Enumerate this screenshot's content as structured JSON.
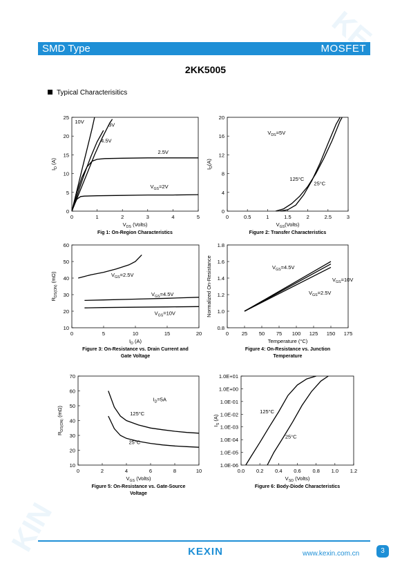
{
  "header": {
    "left": "SMD Type",
    "right": "MOSFET"
  },
  "page_title": "2KK5005",
  "section_title": "Typical  Characterisitics",
  "footer": {
    "logo": "KEXIN",
    "website": "www.kexin.com.cn",
    "page": "3"
  },
  "colors": {
    "brand": "#1e8fd6"
  },
  "chart_data": [
    {
      "type": "line",
      "caption": "Fig 1: On-Region Characteristics",
      "xlabel": "V_DS (Volts)",
      "ylabel": "I_D (A)",
      "xlim": [
        0,
        5
      ],
      "ylim": [
        0,
        25
      ],
      "xticks": [
        0,
        1,
        2,
        3,
        4,
        5
      ],
      "yticks": [
        0,
        5,
        10,
        15,
        20,
        25
      ],
      "series": [
        {
          "name": "10V",
          "x": [
            0,
            0.2,
            0.4,
            0.6,
            0.8,
            0.9
          ],
          "y": [
            0,
            5.5,
            11,
            16.5,
            22,
            25
          ]
        },
        {
          "name": "3V",
          "x": [
            0,
            0.3,
            0.6,
            0.9,
            1.2,
            1.5,
            1.6
          ],
          "y": [
            0,
            5,
            10,
            15,
            19.5,
            23.5,
            24.5
          ]
        },
        {
          "name": "4.5V",
          "x": [
            0,
            0.25,
            0.5,
            0.75,
            1.0,
            1.25
          ],
          "y": [
            0,
            5,
            10,
            14.5,
            18.5,
            21.5
          ]
        },
        {
          "name": "2.5V",
          "x": [
            0,
            0.2,
            0.4,
            0.6,
            0.8,
            1.0,
            1.3,
            2,
            3,
            4,
            5
          ],
          "y": [
            0,
            5,
            9,
            11.8,
            13.3,
            13.8,
            14,
            14.1,
            14.2,
            14.2,
            14.2
          ]
        },
        {
          "name": "VGS=2V",
          "x": [
            0,
            0.1,
            0.2,
            0.35,
            0.5,
            1,
            2,
            3,
            4,
            5
          ],
          "y": [
            0,
            1.8,
            3.2,
            3.9,
            4.0,
            4.1,
            4.2,
            4.3,
            4.3,
            4.4
          ]
        }
      ],
      "labels": [
        {
          "text": "10V",
          "x": 0.12,
          "y": 23.3
        },
        {
          "text": "3V",
          "x": 1.45,
          "y": 22.5
        },
        {
          "text": "4.5V",
          "x": 1.15,
          "y": 18.3
        },
        {
          "text": "2.5V",
          "x": 3.4,
          "y": 15.3
        }
      ],
      "vgs_label": {
        "sub": "GS",
        "value": "=2V",
        "x": 3.1,
        "y": 6.1
      }
    },
    {
      "type": "line",
      "caption": "Figure 2: Transfer Characteristics",
      "xlabel": "V_GS (Volts)",
      "ylabel": "I_D (A)",
      "xlim": [
        0,
        3
      ],
      "ylim": [
        0,
        20
      ],
      "xticks": [
        0,
        0.5,
        1,
        1.5,
        2,
        2.5,
        3
      ],
      "yticks": [
        0,
        4,
        8,
        12,
        16,
        20
      ],
      "series": [
        {
          "name": "125°C",
          "x": [
            1.2,
            1.4,
            1.6,
            1.8,
            2.0,
            2.2,
            2.4,
            2.6,
            2.8,
            2.85
          ],
          "y": [
            0,
            0.5,
            1.6,
            3.2,
            5.3,
            8,
            11.3,
            15,
            19.2,
            20
          ]
        },
        {
          "name": "25°C",
          "x": [
            1.3,
            1.5,
            1.7,
            1.9,
            2.1,
            2.3,
            2.5,
            2.7,
            2.8
          ],
          "y": [
            0,
            0.3,
            1.3,
            3.5,
            6.5,
            10.2,
            14.4,
            18.5,
            20
          ]
        }
      ],
      "labels": [
        {
          "text": "125°C",
          "x": 1.55,
          "y": 6.5
        },
        {
          "text": "25°C",
          "x": 2.15,
          "y": 5.5
        }
      ],
      "vds_label": {
        "sub": "DS",
        "value": "=5V",
        "x": 1.0,
        "y": 16.3
      }
    },
    {
      "type": "line",
      "caption": "Figure 3: On-Resistance vs. Drain Current and Gate Voltage",
      "xlabel": "I_D (A)",
      "ylabel": "R_DS(ON) (mΩ)",
      "xlim": [
        0,
        20
      ],
      "ylim": [
        10,
        60
      ],
      "xticks": [
        0,
        5,
        10,
        15,
        20
      ],
      "yticks": [
        10,
        20,
        30,
        40,
        50,
        60
      ],
      "series": [
        {
          "name": "VGS=2.5V",
          "x": [
            1,
            2,
            3,
            5,
            7,
            9,
            10,
            11
          ],
          "y": [
            40,
            41,
            42,
            43.5,
            45.5,
            48,
            50,
            54
          ]
        },
        {
          "name": "VGS=4.5V",
          "x": [
            2,
            5,
            10,
            15,
            20
          ],
          "y": [
            26.5,
            26.8,
            27.3,
            27.8,
            28.4
          ]
        },
        {
          "name": "VGS=10V",
          "x": [
            2,
            5,
            10,
            15,
            20
          ],
          "y": [
            22.0,
            22.2,
            22.4,
            22.6,
            22.8
          ]
        }
      ],
      "vgs_labels": [
        {
          "sub": "GS",
          "value": "=2.5V",
          "x": 6.2,
          "y": 40.8
        },
        {
          "sub": "GS",
          "value": "=4.5V",
          "x": 12.5,
          "y": 29.2
        },
        {
          "sub": "GS",
          "value": "=10V",
          "x": 13,
          "y": 17.8
        }
      ]
    },
    {
      "type": "line",
      "caption": "Figure 4: On-Resistance vs. Junction Temperature",
      "xlabel": "Temperature (°C)",
      "ylabel": "Normalized On-Resistance",
      "xlim": [
        0,
        175
      ],
      "ylim": [
        0.8,
        1.8
      ],
      "xticks": [
        0,
        25,
        50,
        75,
        100,
        125,
        150,
        175
      ],
      "yticks": [
        0.8,
        1,
        1.2,
        1.4,
        1.6,
        1.8
      ],
      "series": [
        {
          "name": "VGS=4.5V",
          "x": [
            25,
            150
          ],
          "y": [
            1.0,
            1.6
          ]
        },
        {
          "name": "VGS=10V",
          "x": [
            25,
            150
          ],
          "y": [
            1.0,
            1.57
          ]
        },
        {
          "name": "VGS=2.5V",
          "x": [
            25,
            150
          ],
          "y": [
            1.0,
            1.53
          ]
        }
      ],
      "vgs_labels": [
        {
          "sub": "GS",
          "value": "=4.5V",
          "x": 65,
          "y": 1.51
        },
        {
          "sub": "GS",
          "value": "=10V",
          "x": 152,
          "y": 1.36
        },
        {
          "sub": "GS",
          "value": "=2.5V",
          "x": 118,
          "y": 1.2
        }
      ]
    },
    {
      "type": "line",
      "caption": "Figure 5: On-Resistance vs. Gate-Source Voltage",
      "xlabel": "V_GS (Volts)",
      "ylabel": "R_DS(ON) (mΩ)",
      "xlim": [
        0,
        10
      ],
      "ylim": [
        10,
        70
      ],
      "xticks": [
        0,
        2,
        4,
        6,
        8,
        10
      ],
      "yticks": [
        10,
        20,
        30,
        40,
        50,
        60,
        70
      ],
      "series": [
        {
          "name": "125°C",
          "x": [
            2.5,
            3,
            3.5,
            4,
            5,
            6,
            7,
            8,
            9,
            10
          ],
          "y": [
            60,
            49,
            43,
            40,
            37,
            35,
            33.8,
            32.8,
            32,
            31.5
          ]
        },
        {
          "name": "25°C",
          "x": [
            2.5,
            3,
            3.5,
            4,
            5,
            6,
            7,
            8,
            9,
            10
          ],
          "y": [
            43,
            34.5,
            30,
            28,
            26,
            24.6,
            23.6,
            22.9,
            22.4,
            22
          ]
        }
      ],
      "labels": [
        {
          "text": "125°C",
          "x": 4.3,
          "y": 43.5
        },
        {
          "text": "25°C",
          "x": 4.2,
          "y": 24.2
        }
      ],
      "id_label": {
        "sub": "D",
        "value": "=5A",
        "x": 6.2,
        "y": 53
      }
    },
    {
      "type": "line",
      "caption": "Figure 6: Body-Diode Characteristics",
      "xlabel": "V_SD (Volts)",
      "ylabel": "I_S (A)",
      "ylog": true,
      "xlim": [
        0,
        1.2
      ],
      "ylim": [
        1e-06,
        10
      ],
      "xticks": [
        0.0,
        0.2,
        0.4,
        0.6,
        0.8,
        1.0,
        1.2
      ],
      "xtick_labels": [
        "0.0",
        "0.2",
        "0.4",
        "0.6",
        "0.8",
        "1.0",
        "1.2"
      ],
      "yticks": [
        1e-06,
        1e-05,
        0.0001,
        0.001,
        0.01,
        0.1,
        1,
        10
      ],
      "ytick_labels": [
        "1.0E-06",
        "1.0E-05",
        "1.0E-04",
        "1.0E-03",
        "1.0E-02",
        "1.0E-01",
        "1.0E+00",
        "1.0E+01"
      ],
      "series": [
        {
          "name": "125°C",
          "x": [
            0.05,
            0.1,
            0.2,
            0.3,
            0.4,
            0.5,
            0.6,
            0.7,
            0.8
          ],
          "y": [
            1e-06,
            4e-06,
            6e-05,
            0.001,
            0.015,
            0.3,
            2,
            6,
            10
          ]
        },
        {
          "name": "25°C",
          "x": [
            0.28,
            0.35,
            0.45,
            0.55,
            0.65,
            0.75,
            0.85,
            0.93
          ],
          "y": [
            1e-06,
            1e-05,
            0.00015,
            0.0025,
            0.05,
            0.6,
            4,
            10
          ]
        }
      ],
      "labels": [
        {
          "text": "125°C",
          "x": 0.2,
          "y": 0.012
        },
        {
          "text": "25°C",
          "x": 0.47,
          "y": 0.00012
        }
      ]
    }
  ]
}
